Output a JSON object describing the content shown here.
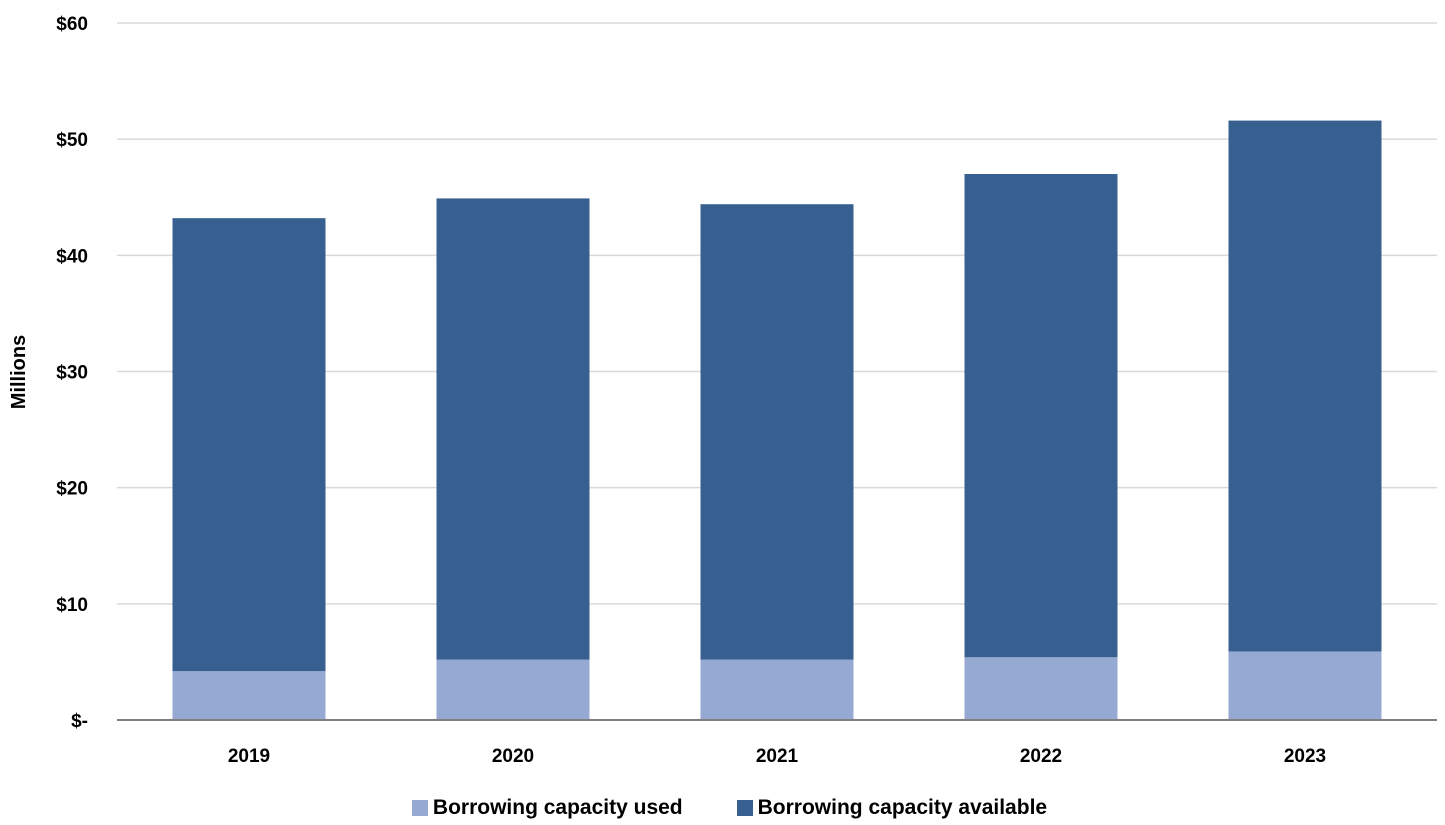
{
  "chart_data": {
    "type": "bar",
    "stacked": true,
    "categories": [
      "2019",
      "2020",
      "2021",
      "2022",
      "2023"
    ],
    "series": [
      {
        "name": "Borrowing capacity used",
        "color": "#95a9d2",
        "values": [
          4.2,
          5.2,
          5.2,
          5.4,
          5.9
        ]
      },
      {
        "name": "Borrowing capacity available",
        "color": "#376091",
        "values": [
          39.0,
          39.7,
          39.2,
          41.6,
          45.7
        ]
      }
    ],
    "ylabel": "Millions",
    "xlabel": "",
    "ylim": [
      0,
      60
    ],
    "yticks": [
      {
        "value": 0,
        "label": "$-"
      },
      {
        "value": 10,
        "label": "$10"
      },
      {
        "value": 20,
        "label": "$20"
      },
      {
        "value": 30,
        "label": "$30"
      },
      {
        "value": 40,
        "label": "$40"
      },
      {
        "value": 50,
        "label": "$50"
      },
      {
        "value": 60,
        "label": "$60"
      }
    ],
    "grid": true,
    "gridline_color": "#d9d9d9",
    "axis_color": "#7f7f7f",
    "legend_position": "bottom"
  }
}
